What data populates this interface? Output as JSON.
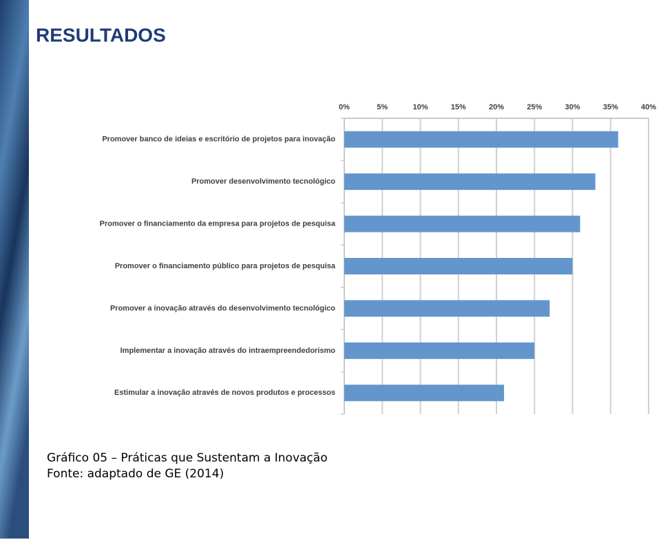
{
  "header": {
    "title": "RESULTADOS"
  },
  "chart_data": {
    "type": "bar",
    "orientation": "horizontal",
    "categories": [
      "Promover banco de ideias e escritório de projetos para inovação",
      "Promover desenvolvimento tecnológico",
      "Promover o financiamento da empresa para projetos de pesquisa",
      "Promover o financiamento público para projetos de pesquisa",
      "Promover a inovação através do desenvolvimento tecnológico",
      "Implementar a inovação através do intraempreendedorismo",
      "Estimular a inovação através de novos produtos e processos"
    ],
    "values": [
      36,
      33,
      31,
      30,
      27,
      25,
      21
    ],
    "color": "#6496cd",
    "xlim": [
      0,
      40
    ],
    "xticks": [
      {
        "value": 0,
        "label": "0%"
      },
      {
        "value": 5,
        "label": "5%"
      },
      {
        "value": 10,
        "label": "10%"
      },
      {
        "value": 15,
        "label": "15%"
      },
      {
        "value": 20,
        "label": "20%"
      },
      {
        "value": 25,
        "label": "25%"
      },
      {
        "value": 30,
        "label": "30%"
      },
      {
        "value": 35,
        "label": "35%"
      },
      {
        "value": 40,
        "label": "40%"
      }
    ],
    "grid": true
  },
  "caption": {
    "lines": [
      "Gráfico 05 – Práticas que Sustentam a Inovação",
      "Fonte: adaptado de GE (2014)"
    ]
  }
}
